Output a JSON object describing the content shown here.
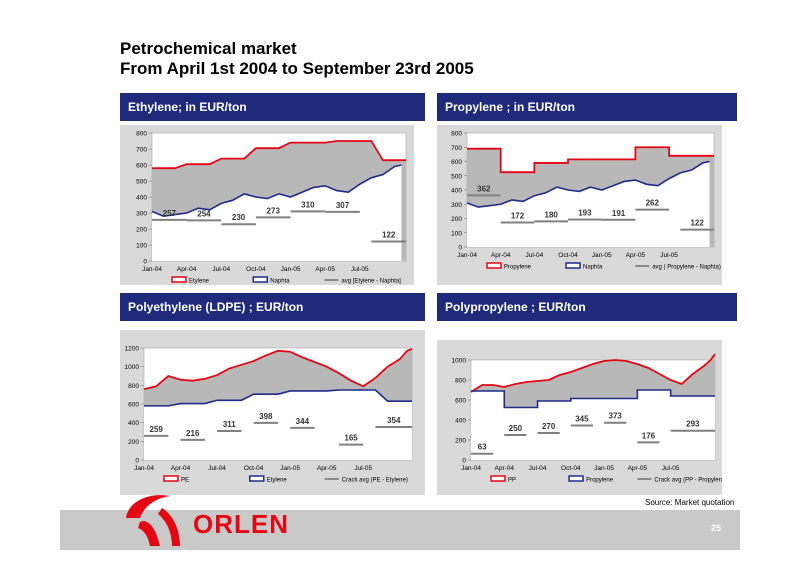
{
  "header": {
    "title_line1": "Petrochemical market",
    "title_line2": "From April 1st 2004 to September 23rd 2005"
  },
  "footer": {
    "source": "Source: Market quotation",
    "brand": "ORLEN",
    "page_number": "25"
  },
  "colors": {
    "panel_header": "#1f2a7a",
    "product_line": "#e30613",
    "feedstock_line": "#1f2a8a",
    "crack_line": "#808080",
    "plot_bg": "#d9d9d9",
    "fill_gray": "#b8b8b8",
    "fill_white": "#ffffff",
    "logo_red": "#e30613"
  },
  "chart_data": [
    {
      "type": "area",
      "title": "Ethylene; in  EUR/ton",
      "ylim": [
        0,
        800
      ],
      "yticks": [
        "0",
        "100",
        "200",
        "300",
        "400",
        "500",
        "600",
        "700",
        "800"
      ],
      "xticks": [
        "Jan-04",
        "Apr-04",
        "Jul-04",
        "Oct-04",
        "Jan-05",
        "Apr-05",
        "Jul-05"
      ],
      "legend": [
        "Etylene",
        "Naphta",
        "avg [Etylene - Naphta]"
      ],
      "product_steps": [
        [
          0,
          580
        ],
        [
          2,
          580
        ],
        [
          3,
          605
        ],
        [
          5,
          605
        ],
        [
          6,
          640
        ],
        [
          8,
          640
        ],
        [
          9,
          705
        ],
        [
          11,
          705
        ],
        [
          12,
          740
        ],
        [
          15,
          740
        ],
        [
          16,
          750
        ],
        [
          19,
          750
        ],
        [
          20,
          630
        ],
        [
          22,
          630
        ]
      ],
      "feedstock": [
        [
          0,
          310
        ],
        [
          1,
          280
        ],
        [
          2,
          290
        ],
        [
          3,
          300
        ],
        [
          4,
          330
        ],
        [
          5,
          320
        ],
        [
          6,
          360
        ],
        [
          7,
          380
        ],
        [
          8,
          420
        ],
        [
          9,
          400
        ],
        [
          10,
          390
        ],
        [
          11,
          420
        ],
        [
          12,
          400
        ],
        [
          13,
          430
        ],
        [
          14,
          460
        ],
        [
          15,
          470
        ],
        [
          16,
          440
        ],
        [
          17,
          430
        ],
        [
          18,
          480
        ],
        [
          19,
          520
        ],
        [
          20,
          540
        ],
        [
          21,
          590
        ],
        [
          21.6,
          600
        ]
      ],
      "crack_segments": [
        {
          "x0": 0,
          "x1": 3,
          "y": 257
        },
        {
          "x0": 3,
          "x1": 6,
          "y": 254
        },
        {
          "x0": 6,
          "x1": 9,
          "y": 230
        },
        {
          "x0": 9,
          "x1": 12,
          "y": 273
        },
        {
          "x0": 12,
          "x1": 15,
          "y": 310
        },
        {
          "x0": 15,
          "x1": 18,
          "y": 307
        },
        {
          "x0": 19,
          "x1": 22,
          "y": 122
        }
      ],
      "crack_labels": [
        "257",
        "254",
        "230",
        "273",
        "310",
        "307",
        "122"
      ]
    },
    {
      "type": "area",
      "title": "Propylene ; in EUR/ton",
      "ylim": [
        0,
        800
      ],
      "yticks": [
        "0",
        "100",
        "200",
        "300",
        "400",
        "500",
        "600",
        "700",
        "800"
      ],
      "xticks": [
        "Jan-04",
        "Apr-04",
        "Jul-04",
        "Oct-04",
        "Jan-05",
        "Apr-05",
        "Jul-05"
      ],
      "legend": [
        "Propylene",
        "Naphta",
        "avg ( Propylene - Naphta)"
      ],
      "product_steps": [
        [
          0,
          690
        ],
        [
          3,
          690
        ],
        [
          3,
          525
        ],
        [
          6,
          525
        ],
        [
          6,
          590
        ],
        [
          9,
          590
        ],
        [
          9,
          615
        ],
        [
          15,
          615
        ],
        [
          15,
          700
        ],
        [
          18,
          700
        ],
        [
          18,
          640
        ],
        [
          22,
          640
        ]
      ],
      "feedstock": [
        [
          0,
          310
        ],
        [
          1,
          280
        ],
        [
          2,
          290
        ],
        [
          3,
          300
        ],
        [
          4,
          330
        ],
        [
          5,
          320
        ],
        [
          6,
          360
        ],
        [
          7,
          380
        ],
        [
          8,
          420
        ],
        [
          9,
          400
        ],
        [
          10,
          390
        ],
        [
          11,
          420
        ],
        [
          12,
          400
        ],
        [
          13,
          430
        ],
        [
          14,
          460
        ],
        [
          15,
          470
        ],
        [
          16,
          440
        ],
        [
          17,
          430
        ],
        [
          18,
          480
        ],
        [
          19,
          520
        ],
        [
          20,
          540
        ],
        [
          21,
          590
        ],
        [
          21.6,
          600
        ]
      ],
      "crack_segments": [
        {
          "x0": 0,
          "x1": 3,
          "y": 362
        },
        {
          "x0": 3,
          "x1": 6,
          "y": 172
        },
        {
          "x0": 6,
          "x1": 9,
          "y": 180
        },
        {
          "x0": 9,
          "x1": 12,
          "y": 193
        },
        {
          "x0": 12,
          "x1": 15,
          "y": 191
        },
        {
          "x0": 15,
          "x1": 18,
          "y": 262
        },
        {
          "x0": 19,
          "x1": 22,
          "y": 122
        }
      ],
      "crack_labels": [
        "362",
        "172",
        "180",
        "193",
        "191",
        "262",
        "122"
      ]
    },
    {
      "type": "area",
      "title": "Polyethylene (LDPE) ; EUR/ton",
      "ylim": [
        0,
        1200
      ],
      "yticks": [
        "0",
        "200",
        "400",
        "600",
        "800",
        "1000",
        "1200"
      ],
      "xticks": [
        "Jan-04",
        "Apr-04",
        "Jul-04",
        "Oct-04",
        "Jan-05",
        "Apr-05",
        "Jul-05"
      ],
      "legend": [
        "PE",
        "Etylene",
        "Crack avg (PE - Etylene)"
      ],
      "product": [
        [
          0,
          760
        ],
        [
          1,
          790
        ],
        [
          2,
          900
        ],
        [
          3,
          860
        ],
        [
          4,
          850
        ],
        [
          5,
          870
        ],
        [
          6,
          910
        ],
        [
          7,
          980
        ],
        [
          8,
          1020
        ],
        [
          9,
          1060
        ],
        [
          10,
          1120
        ],
        [
          11,
          1170
        ],
        [
          12,
          1160
        ],
        [
          13,
          1100
        ],
        [
          14,
          1050
        ],
        [
          15,
          1000
        ],
        [
          16,
          930
        ],
        [
          17,
          850
        ],
        [
          18,
          790
        ],
        [
          19,
          880
        ],
        [
          20,
          1000
        ],
        [
          21,
          1080
        ],
        [
          21.6,
          1170
        ],
        [
          22,
          1190
        ]
      ],
      "feedstock_steps": [
        [
          0,
          580
        ],
        [
          2,
          580
        ],
        [
          3,
          605
        ],
        [
          5,
          605
        ],
        [
          6,
          640
        ],
        [
          8,
          640
        ],
        [
          9,
          705
        ],
        [
          11,
          705
        ],
        [
          12,
          740
        ],
        [
          15,
          740
        ],
        [
          16,
          750
        ],
        [
          19,
          750
        ],
        [
          20,
          630
        ],
        [
          22,
          630
        ]
      ],
      "crack_segments": [
        {
          "x0": 0,
          "x1": 2,
          "y": 259
        },
        {
          "x0": 3,
          "x1": 5,
          "y": 216
        },
        {
          "x0": 6,
          "x1": 8,
          "y": 311
        },
        {
          "x0": 9,
          "x1": 11,
          "y": 398
        },
        {
          "x0": 12,
          "x1": 14,
          "y": 344
        },
        {
          "x0": 16,
          "x1": 18,
          "y": 165
        },
        {
          "x0": 19,
          "x1": 22,
          "y": 354
        }
      ],
      "crack_labels": [
        "259",
        "216",
        "311",
        "398",
        "344",
        "165",
        "354"
      ]
    },
    {
      "type": "area",
      "title": "Polypropylene ; EUR/ton",
      "ylim": [
        0,
        1000
      ],
      "yticks": [
        "0",
        "200",
        "400",
        "600",
        "800",
        "1000"
      ],
      "xticks": [
        "Jan-04",
        "Apr-04",
        "Jul-04",
        "Oct-04",
        "Jan-05",
        "Apr-05",
        "Jul-05"
      ],
      "legend": [
        "PP",
        "Propylene",
        "Crack avg (PP - Propylene)"
      ],
      "product": [
        [
          0,
          680
        ],
        [
          1,
          750
        ],
        [
          2,
          750
        ],
        [
          3,
          730
        ],
        [
          4,
          760
        ],
        [
          5,
          780
        ],
        [
          6,
          790
        ],
        [
          7,
          800
        ],
        [
          8,
          850
        ],
        [
          9,
          880
        ],
        [
          10,
          920
        ],
        [
          11,
          960
        ],
        [
          12,
          990
        ],
        [
          13,
          1000
        ],
        [
          14,
          990
        ],
        [
          15,
          960
        ],
        [
          16,
          920
        ],
        [
          17,
          860
        ],
        [
          18,
          800
        ],
        [
          19,
          760
        ],
        [
          20,
          860
        ],
        [
          21,
          940
        ],
        [
          21.6,
          1000
        ],
        [
          22,
          1060
        ]
      ],
      "feedstock_steps": [
        [
          0,
          690
        ],
        [
          3,
          690
        ],
        [
          3,
          525
        ],
        [
          6,
          525
        ],
        [
          6,
          590
        ],
        [
          9,
          590
        ],
        [
          9,
          615
        ],
        [
          15,
          615
        ],
        [
          15,
          700
        ],
        [
          18,
          700
        ],
        [
          18,
          640
        ],
        [
          22,
          640
        ]
      ],
      "crack_segments": [
        {
          "x0": 0,
          "x1": 2,
          "y": 63
        },
        {
          "x0": 3,
          "x1": 5,
          "y": 250
        },
        {
          "x0": 6,
          "x1": 8,
          "y": 270
        },
        {
          "x0": 9,
          "x1": 11,
          "y": 345
        },
        {
          "x0": 12,
          "x1": 14,
          "y": 373
        },
        {
          "x0": 15,
          "x1": 17,
          "y": 176
        },
        {
          "x0": 18,
          "x1": 22,
          "y": 293
        }
      ],
      "crack_labels": [
        "63",
        "250",
        "270",
        "345",
        "373",
        "176",
        "293"
      ]
    }
  ]
}
